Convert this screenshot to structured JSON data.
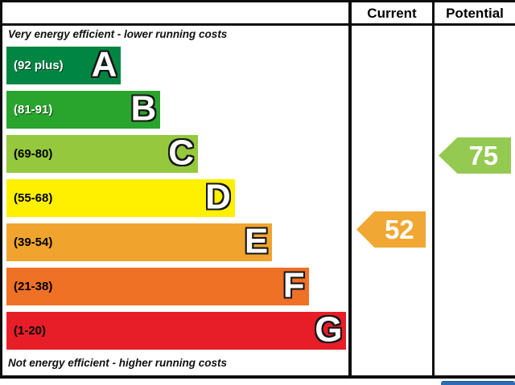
{
  "header": {
    "current": "Current",
    "potential": "Potential"
  },
  "notes": {
    "top": "Very energy efficient - lower running costs",
    "bottom": "Not energy efficient - higher running costs"
  },
  "chart_data": {
    "type": "bar",
    "kind": "energy-efficiency-rating",
    "bands": [
      {
        "letter": "A",
        "range_label": "(92 plus)",
        "min": 92,
        "max": 100,
        "color": "#008542",
        "label_color": "#ffffff",
        "width_pct": 33.5
      },
      {
        "letter": "B",
        "range_label": "(81-91)",
        "min": 81,
        "max": 91,
        "color": "#29a42d",
        "label_color": "#ffffff",
        "width_pct": 45.0
      },
      {
        "letter": "C",
        "range_label": "(69-80)",
        "min": 69,
        "max": 80,
        "color": "#95c83d",
        "label_color": "#000000",
        "width_pct": 56.0
      },
      {
        "letter": "D",
        "range_label": "(55-68)",
        "min": 55,
        "max": 68,
        "color": "#fff000",
        "label_color": "#000000",
        "width_pct": 66.8
      },
      {
        "letter": "E",
        "range_label": "(39-54)",
        "min": 39,
        "max": 54,
        "color": "#f0a42e",
        "label_color": "#000000",
        "width_pct": 77.7
      },
      {
        "letter": "F",
        "range_label": "(21-38)",
        "min": 21,
        "max": 38,
        "color": "#ee7125",
        "label_color": "#000000",
        "width_pct": 88.4
      },
      {
        "letter": "G",
        "range_label": "(1-20)",
        "min": 1,
        "max": 20,
        "color": "#e71e28",
        "label_color": "#000000",
        "width_pct": 99.4
      }
    ],
    "current": {
      "value": "52",
      "color": "#f0a733"
    },
    "potential": {
      "value": "75",
      "color": "#95ca52"
    },
    "legend_position": "none",
    "grid": false
  },
  "footer": {
    "accent_color": "#2e6cb5"
  }
}
